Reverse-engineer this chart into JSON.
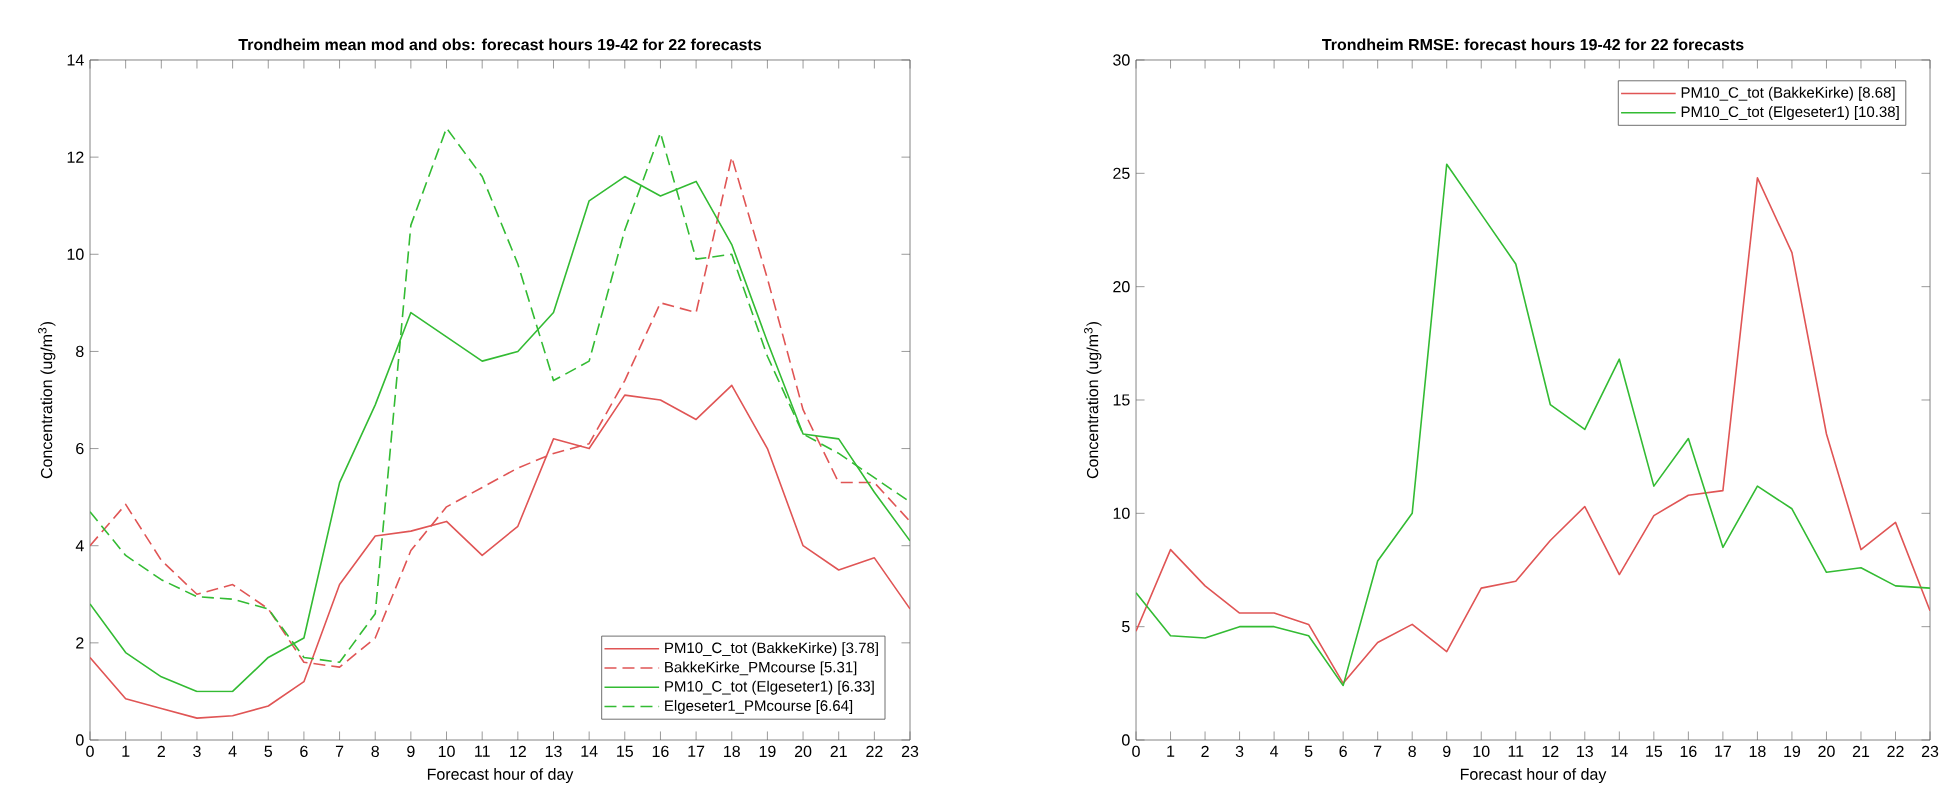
{
  "chart_data": [
    {
      "type": "line",
      "title": "Trondheim mean mod and obs: forecast hours 19-42 for 22 forecasts",
      "xlabel": "Forecast hour of day",
      "ylabel": "Concentration (ug/m$^{3}$)",
      "x": [
        0,
        1,
        2,
        3,
        4,
        5,
        6,
        7,
        8,
        9,
        10,
        11,
        12,
        13,
        14,
        15,
        16,
        17,
        18,
        19,
        20,
        21,
        22,
        23
      ],
      "xlim": [
        0,
        23
      ],
      "xticks": [
        0,
        1,
        2,
        3,
        4,
        5,
        6,
        7,
        8,
        9,
        10,
        11,
        12,
        13,
        14,
        15,
        16,
        17,
        18,
        19,
        20,
        21,
        22,
        23
      ],
      "ylim": [
        0,
        14
      ],
      "yticks": [
        0,
        2,
        4,
        6,
        8,
        10,
        12,
        14
      ],
      "grid": false,
      "legend": "bottom right",
      "series": [
        {
          "name": "PM10_C_tot (BakkeKirke) [3.78]",
          "color": "#e05555",
          "line_style": "solid",
          "values": [
            1.7,
            0.85,
            0.65,
            0.45,
            0.5,
            0.7,
            1.2,
            3.2,
            4.2,
            4.3,
            4.5,
            3.8,
            4.4,
            6.2,
            6.0,
            7.1,
            7.0,
            6.6,
            7.3,
            6.0,
            4.0,
            3.5,
            3.75,
            2.7
          ]
        },
        {
          "name": "BakkeKirke_PMcourse [5.31]",
          "color": "#e05555",
          "line_style": "dashed",
          "values": [
            4.0,
            4.85,
            3.7,
            3.0,
            3.2,
            2.7,
            1.6,
            1.5,
            2.1,
            3.9,
            4.8,
            5.2,
            5.6,
            5.9,
            6.1,
            7.4,
            9.0,
            8.8,
            12.0,
            9.5,
            6.8,
            5.3,
            5.3,
            4.5
          ]
        },
        {
          "name": "PM10_C_tot (Elgeseter1) [6.33]",
          "color": "#33bb33",
          "line_style": "solid",
          "values": [
            2.8,
            1.8,
            1.3,
            1.0,
            1.0,
            1.7,
            2.1,
            5.3,
            6.9,
            8.8,
            8.3,
            7.8,
            8.0,
            8.8,
            11.1,
            11.6,
            11.2,
            11.5,
            10.2,
            8.2,
            6.3,
            6.2,
            5.1,
            4.1
          ]
        },
        {
          "name": "Elgeseter1_PMcourse [6.64]",
          "color": "#33bb33",
          "line_style": "dashed",
          "values": [
            4.7,
            3.8,
            3.3,
            2.95,
            2.9,
            2.7,
            1.7,
            1.6,
            2.6,
            10.6,
            12.6,
            11.6,
            9.8,
            7.4,
            7.8,
            10.5,
            12.5,
            9.9,
            10.0,
            7.9,
            6.3,
            5.9,
            5.4,
            4.9
          ]
        }
      ]
    },
    {
      "type": "line",
      "title": "Trondheim RMSE: forecast hours 19-42 for 22 forecasts",
      "xlabel": "Forecast hour of day",
      "ylabel": "Concentration (ug/m$^{3}$)",
      "x": [
        0,
        1,
        2,
        3,
        4,
        5,
        6,
        7,
        8,
        9,
        10,
        11,
        12,
        13,
        14,
        15,
        16,
        17,
        18,
        19,
        20,
        21,
        22,
        23
      ],
      "xlim": [
        0,
        23
      ],
      "xticks": [
        0,
        1,
        2,
        3,
        4,
        5,
        6,
        7,
        8,
        9,
        10,
        11,
        12,
        13,
        14,
        15,
        16,
        17,
        18,
        19,
        20,
        21,
        22,
        23
      ],
      "ylim": [
        0,
        30
      ],
      "yticks": [
        0,
        5,
        10,
        15,
        20,
        25,
        30
      ],
      "grid": false,
      "legend": "top right",
      "series": [
        {
          "name": "PM10_C_tot (BakkeKirke) [8.68]",
          "color": "#e05555",
          "line_style": "solid",
          "values": [
            4.8,
            8.4,
            6.8,
            5.6,
            5.6,
            5.1,
            2.5,
            4.3,
            5.1,
            3.9,
            6.7,
            7.0,
            8.8,
            10.3,
            7.3,
            9.9,
            10.8,
            11.0,
            24.8,
            21.5,
            13.5,
            8.4,
            9.6,
            5.7
          ]
        },
        {
          "name": "PM10_C_tot (Elgeseter1) [10.38]",
          "color": "#33bb33",
          "line_style": "solid",
          "values": [
            6.5,
            4.6,
            4.5,
            5.0,
            5.0,
            4.6,
            2.4,
            7.9,
            10.0,
            25.4,
            23.2,
            21.0,
            14.8,
            13.7,
            16.8,
            11.2,
            13.3,
            8.5,
            11.2,
            10.2,
            7.4,
            7.6,
            6.8,
            6.7
          ]
        }
      ]
    }
  ]
}
